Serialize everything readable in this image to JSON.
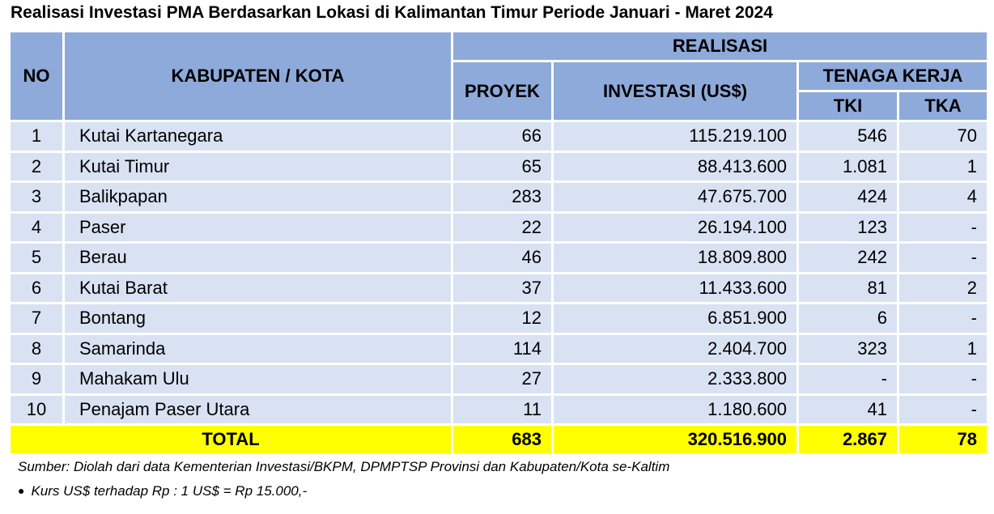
{
  "title": "Realisasi Investasi PMA Berdasarkan Lokasi di Kalimantan Timur Periode Januari - Maret 2024",
  "headers": {
    "no": "NO",
    "region": "KABUPATEN / KOTA",
    "realisasi": "REALISASI",
    "proyek": "PROYEK",
    "investasi": "INVESTASI (US$)",
    "tenaga_kerja": "TENAGA KERJA",
    "tki": "TKI",
    "tka": "TKA"
  },
  "rows": [
    {
      "no": "1",
      "name": "Kutai Kartanegara",
      "proyek": "66",
      "investasi": "115.219.100",
      "tki": "546",
      "tka": "70"
    },
    {
      "no": "2",
      "name": "Kutai Timur",
      "proyek": "65",
      "investasi": "88.413.600",
      "tki": "1.081",
      "tka": "1"
    },
    {
      "no": "3",
      "name": "Balikpapan",
      "proyek": "283",
      "investasi": "47.675.700",
      "tki": "424",
      "tka": "4"
    },
    {
      "no": "4",
      "name": "Paser",
      "proyek": "22",
      "investasi": "26.194.100",
      "tki": "123",
      "tka": "-"
    },
    {
      "no": "5",
      "name": "Berau",
      "proyek": "46",
      "investasi": "18.809.800",
      "tki": "242",
      "tka": "-"
    },
    {
      "no": "6",
      "name": "Kutai Barat",
      "proyek": "37",
      "investasi": "11.433.600",
      "tki": "81",
      "tka": "2"
    },
    {
      "no": "7",
      "name": "Bontang",
      "proyek": "12",
      "investasi": "6.851.900",
      "tki": "6",
      "tka": "-"
    },
    {
      "no": "8",
      "name": "Samarinda",
      "proyek": "114",
      "investasi": "2.404.700",
      "tki": "323",
      "tka": "1"
    },
    {
      "no": "9",
      "name": "Mahakam Ulu",
      "proyek": "27",
      "investasi": "2.333.800",
      "tki": "-",
      "tka": "-"
    },
    {
      "no": "10",
      "name": "Penajam Paser Utara",
      "proyek": "11",
      "investasi": "1.180.600",
      "tki": "41",
      "tka": "-"
    }
  ],
  "total": {
    "label": "TOTAL",
    "proyek": "683",
    "investasi": "320.516.900",
    "tki": "2.867",
    "tka": "78"
  },
  "source": "Sumber: Diolah dari data Kementerian Investasi/BKPM, DPMPTSP Provinsi dan Kabupaten/Kota se-Kaltim",
  "note": "Kurs US$ terhadap Rp : 1 US$ = Rp 15.000,-",
  "colors": {
    "header": "#8eaadb",
    "row": "#d9e2f3",
    "total": "#ffff00"
  }
}
